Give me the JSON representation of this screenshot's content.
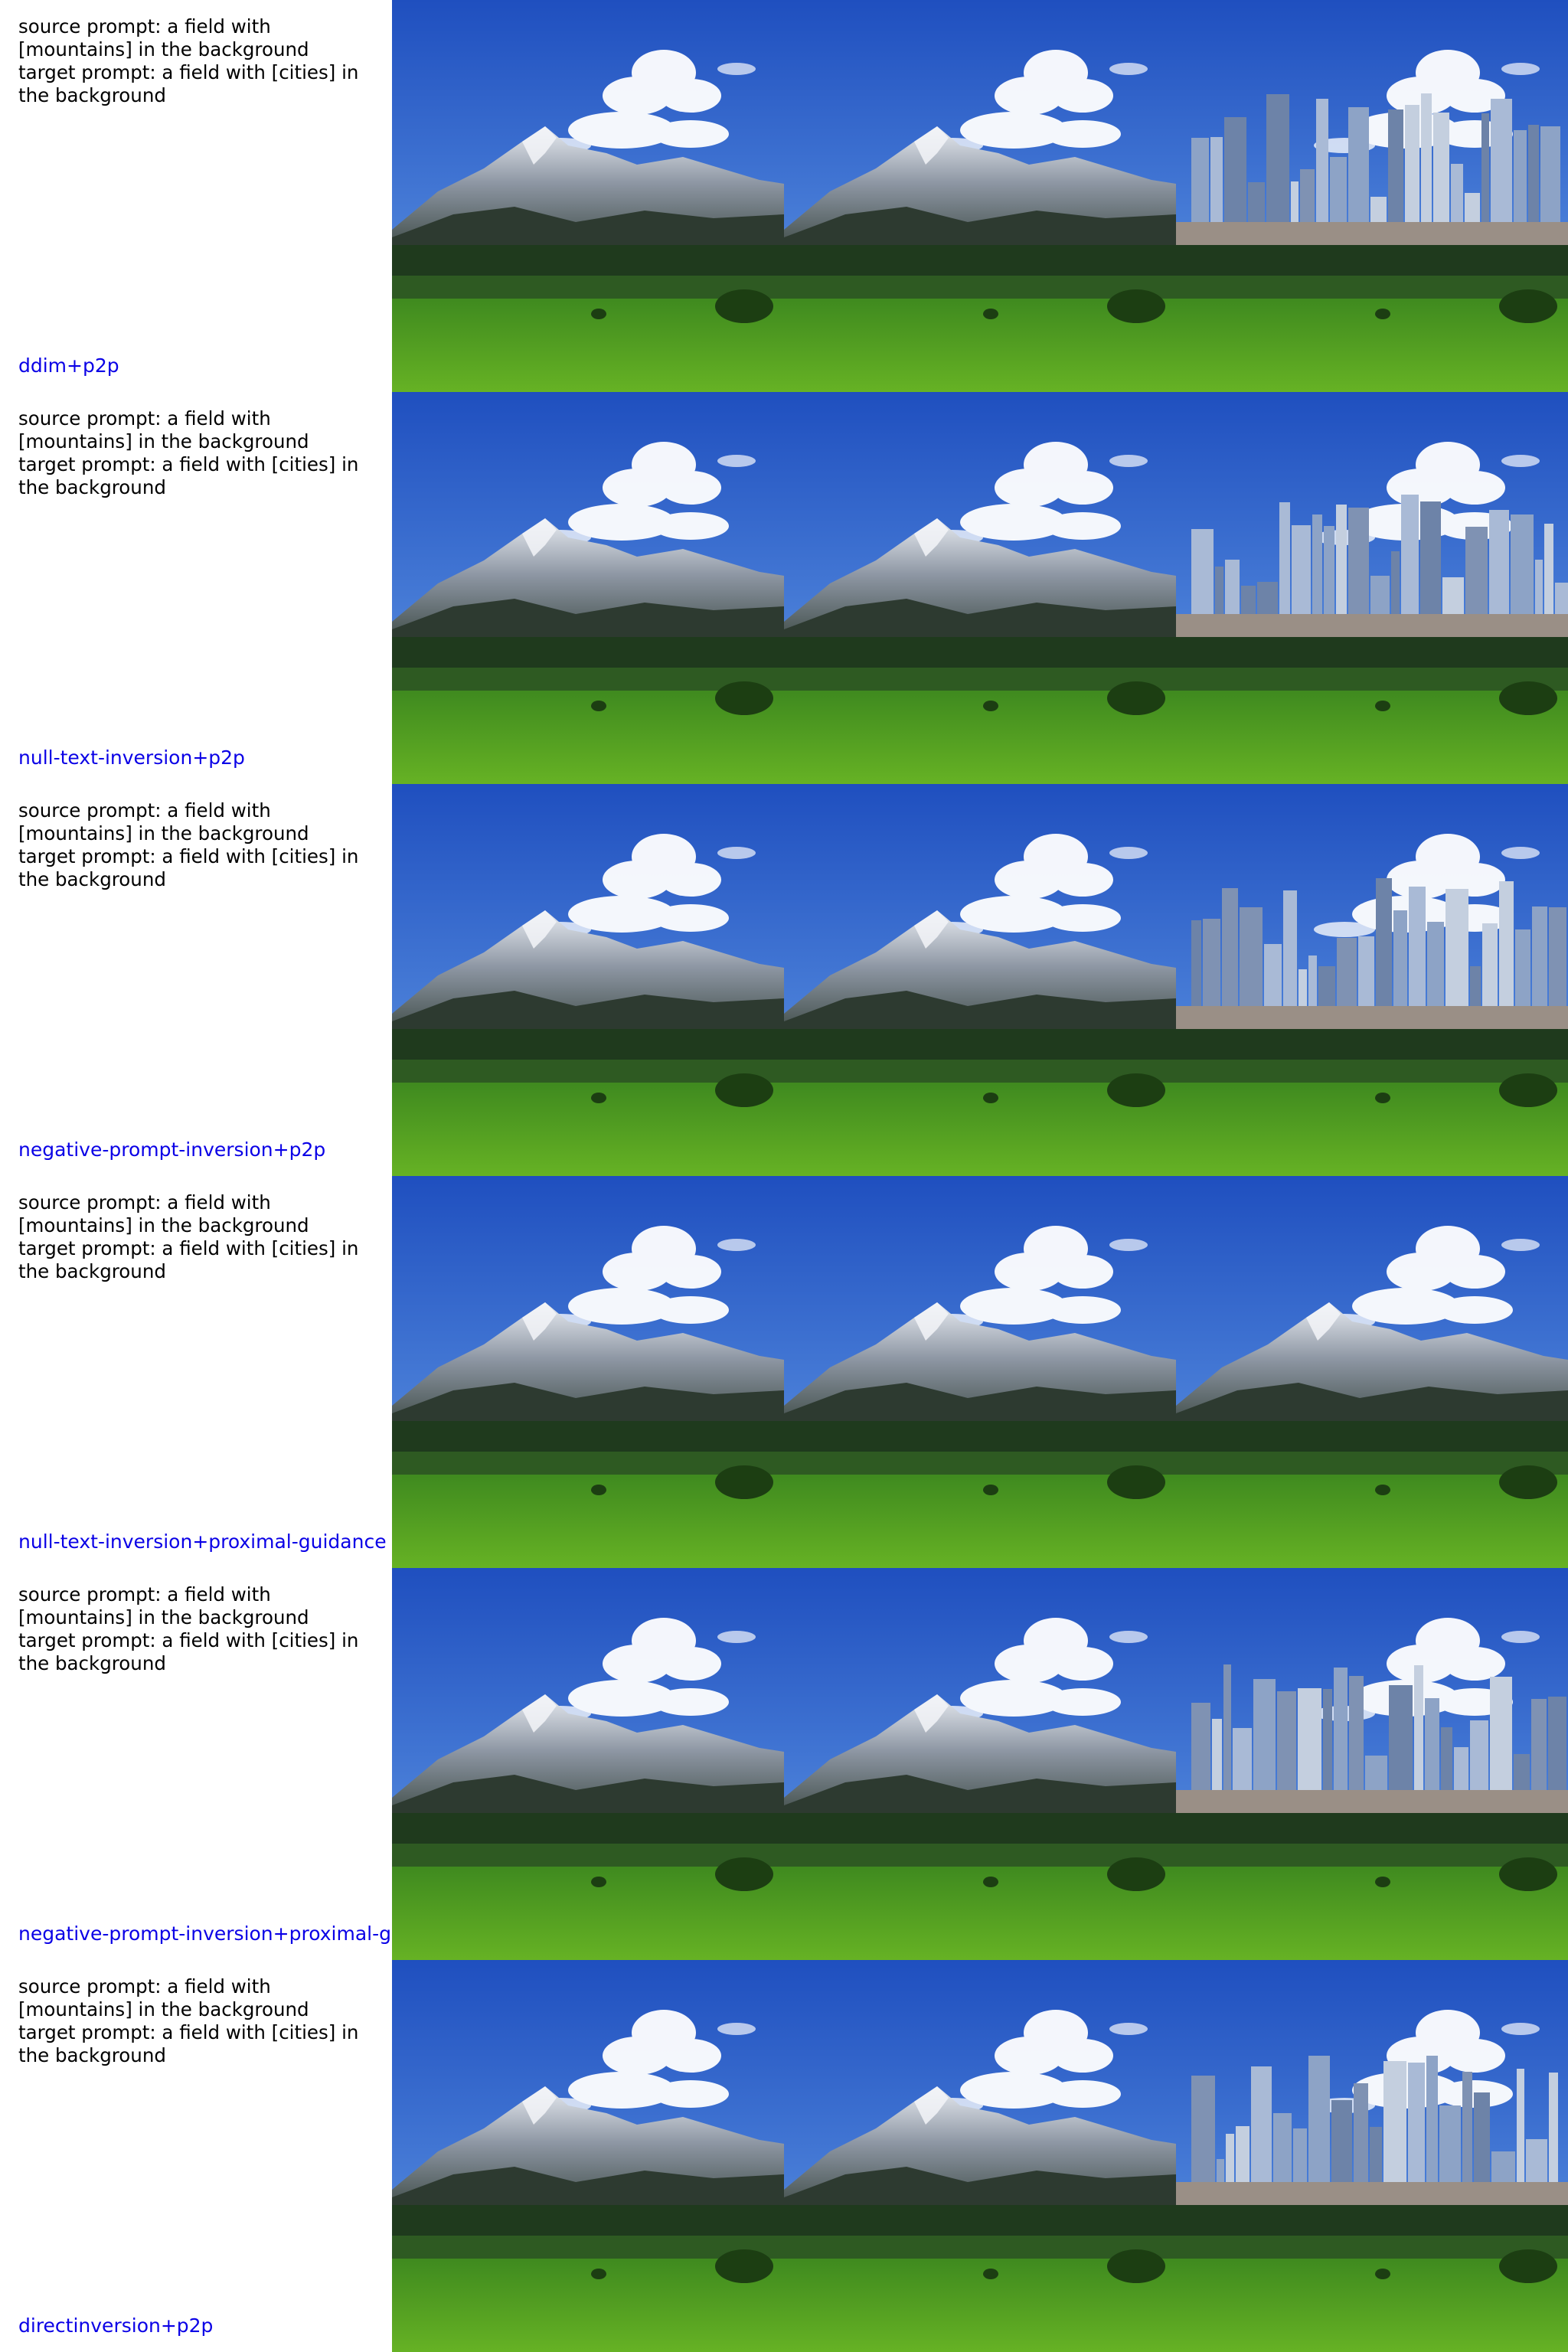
{
  "page": {
    "label_color": "#0a00e6"
  },
  "rows": [
    {
      "source_prompt": "source prompt: a field with [mountains] in the background",
      "target_prompt": "target prompt: a field with [cities] in the background",
      "method": "ddim+p2p",
      "images": [
        {
          "variant": "original",
          "description_icon": "mountain-field-photo"
        },
        {
          "variant": "reconstruction",
          "description_icon": "mountain-field-photo"
        },
        {
          "variant": "edited",
          "description_icon": "city-field-photo"
        }
      ]
    },
    {
      "source_prompt": "source prompt: a field with [mountains] in the background",
      "target_prompt": "target prompt: a field with [cities] in the background",
      "method": "null-text-inversion+p2p",
      "images": [
        {
          "variant": "original",
          "description_icon": "mountain-field-photo"
        },
        {
          "variant": "reconstruction",
          "description_icon": "mountain-field-photo"
        },
        {
          "variant": "edited",
          "description_icon": "city-field-photo"
        }
      ]
    },
    {
      "source_prompt": "source prompt: a field with [mountains] in the background",
      "target_prompt": "target prompt: a field with [cities] in the background",
      "method": "negative-prompt-inversion+p2p",
      "images": [
        {
          "variant": "original",
          "description_icon": "mountain-field-photo"
        },
        {
          "variant": "reconstruction",
          "description_icon": "mountain-field-photo"
        },
        {
          "variant": "edited",
          "description_icon": "city-field-photo"
        }
      ]
    },
    {
      "source_prompt": "source prompt: a field with [mountains] in the background",
      "target_prompt": "target prompt: a field with [cities] in the background",
      "method": "null-text-inversion+proximal-guidance",
      "images": [
        {
          "variant": "original",
          "description_icon": "mountain-field-photo"
        },
        {
          "variant": "reconstruction",
          "description_icon": "mountain-field-photo"
        },
        {
          "variant": "edited",
          "description_icon": "mountain-field-photo"
        }
      ]
    },
    {
      "source_prompt": "source prompt: a field with [mountains] in the background",
      "target_prompt": "target prompt: a field with [cities] in the background",
      "method": "negative-prompt-inversion+proximal-g",
      "images": [
        {
          "variant": "original",
          "description_icon": "mountain-field-photo"
        },
        {
          "variant": "reconstruction",
          "description_icon": "mountain-field-photo"
        },
        {
          "variant": "edited",
          "description_icon": "city-field-photo"
        }
      ]
    },
    {
      "source_prompt": "source prompt: a field with [mountains] in the background",
      "target_prompt": "target prompt: a field with [cities] in the background",
      "method": "directinversion+p2p",
      "images": [
        {
          "variant": "original",
          "description_icon": "mountain-field-photo"
        },
        {
          "variant": "reconstruction",
          "description_icon": "mountain-field-photo"
        },
        {
          "variant": "edited",
          "description_icon": "city-field-photo"
        }
      ]
    }
  ]
}
